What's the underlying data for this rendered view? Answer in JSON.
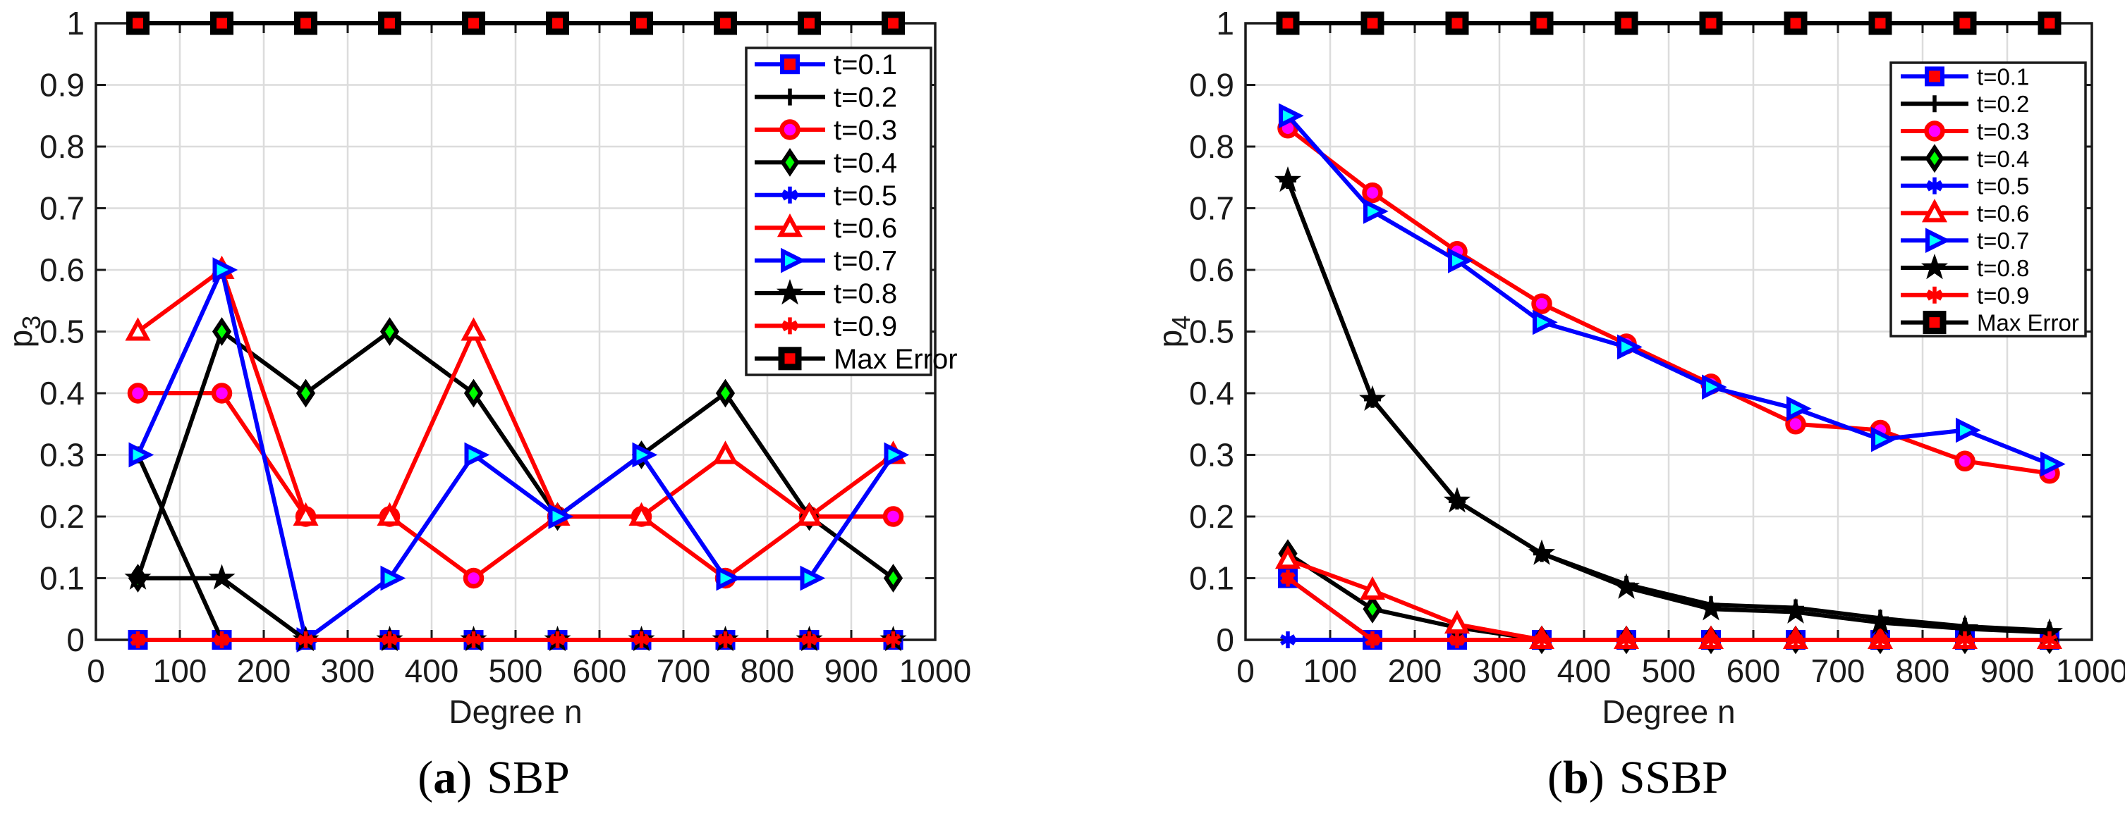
{
  "figure_title": "",
  "captions": {
    "a": {
      "open": "(",
      "letter": "a",
      "close": ")",
      "title": "SBP"
    },
    "b": {
      "open": "(",
      "letter": "b",
      "close": ")",
      "title": "SSBP"
    }
  },
  "colors": {
    "blue": "#0000ff",
    "red": "#ff0000",
    "black": "#000000",
    "green_face": "#00ff00",
    "magenta_face": "#ff00ff",
    "cyan_face": "#00ffff",
    "white_face": "#ffffff",
    "red_face": "#ff0000",
    "grid": "#dcdcdc",
    "axis": "#1a1a1a",
    "legend_bg": "#ffffff"
  },
  "chart_data": [
    {
      "type": "line",
      "panel": "a",
      "xlabel": "Degree n",
      "ylabel": {
        "text": "p",
        "sub": "3"
      },
      "xlim": [
        0,
        1000
      ],
      "ylim": [
        0,
        1
      ],
      "xticks": [
        0,
        100,
        200,
        300,
        400,
        500,
        600,
        700,
        800,
        900,
        1000
      ],
      "xtick_labels": [
        "0",
        "100",
        "200",
        "300",
        "400",
        "500",
        "600",
        "700",
        "800",
        "900",
        "1000"
      ],
      "yticks": [
        0,
        0.1,
        0.2,
        0.3,
        0.4,
        0.5,
        0.6,
        0.7,
        0.8,
        0.9,
        1
      ],
      "ytick_labels": [
        "0",
        "0.1",
        "0.2",
        "0.3",
        "0.4",
        "0.5",
        "0.6",
        "0.7",
        "0.8",
        "0.9",
        "1"
      ],
      "grid": true,
      "legend_position": "top-right-inside",
      "x": [
        50,
        150,
        250,
        350,
        450,
        550,
        650,
        750,
        850,
        950
      ],
      "series": [
        {
          "name": "t=0.1",
          "color": "#0000ff",
          "marker": "square",
          "face": "#ff0000",
          "values": [
            0,
            0,
            0,
            0,
            0,
            0,
            0,
            0,
            0,
            0
          ]
        },
        {
          "name": "t=0.2",
          "color": "#000000",
          "marker": "plus",
          "face": "none",
          "values": [
            0.3,
            0,
            0,
            0,
            0,
            0,
            0,
            0,
            0,
            0
          ]
        },
        {
          "name": "t=0.3",
          "color": "#ff0000",
          "marker": "circle",
          "face": "#ff00ff",
          "values": [
            0.4,
            0.4,
            0.2,
            0.2,
            0.1,
            0.2,
            0.2,
            0.1,
            0.2,
            0.2
          ]
        },
        {
          "name": "t=0.4",
          "color": "#000000",
          "marker": "diamond",
          "face": "#00ff00",
          "values": [
            0.1,
            0.5,
            0.4,
            0.5,
            0.4,
            0.2,
            0.3,
            0.4,
            0.2,
            0.1
          ]
        },
        {
          "name": "t=0.5",
          "color": "#0000ff",
          "marker": "asterisk",
          "face": "none",
          "values": [
            0,
            0,
            0,
            0,
            0,
            0,
            0,
            0,
            0,
            0
          ]
        },
        {
          "name": "t=0.6",
          "color": "#ff0000",
          "marker": "triangle-up",
          "face": "#ffffff",
          "values": [
            0.5,
            0.6,
            0.2,
            0.2,
            0.5,
            0.2,
            0.2,
            0.3,
            0.2,
            0.3
          ]
        },
        {
          "name": "t=0.7",
          "color": "#0000ff",
          "marker": "triangle-right",
          "face": "#00ffff",
          "values": [
            0.3,
            0.6,
            0,
            0.1,
            0.3,
            0.2,
            0.3,
            0.1,
            0.1,
            0.3
          ]
        },
        {
          "name": "t=0.8",
          "color": "#000000",
          "marker": "pentagram",
          "face": "#000000",
          "values": [
            0.1,
            0.1,
            0,
            0,
            0,
            0,
            0,
            0,
            0,
            0
          ]
        },
        {
          "name": "t=0.9",
          "color": "#ff0000",
          "marker": "asterisk",
          "face": "none",
          "values": [
            0,
            0,
            0,
            0,
            0,
            0,
            0,
            0,
            0,
            0
          ]
        },
        {
          "name": "Max Error",
          "color": "#000000",
          "marker": "square",
          "face": "#ff0000",
          "msize": 12,
          "medge": 9,
          "values": [
            1,
            1,
            1,
            1,
            1,
            1,
            1,
            1,
            1,
            1
          ]
        }
      ]
    },
    {
      "type": "line",
      "panel": "b",
      "xlabel": "Degree n",
      "ylabel": {
        "text": "p",
        "sub": "4"
      },
      "xlim": [
        0,
        1000
      ],
      "ylim": [
        0,
        1
      ],
      "xticks": [
        0,
        100,
        200,
        300,
        400,
        500,
        600,
        700,
        800,
        900,
        1000
      ],
      "xtick_labels": [
        "0",
        "100",
        "200",
        "300",
        "400",
        "500",
        "600",
        "700",
        "800",
        "900",
        "1000"
      ],
      "yticks": [
        0,
        0.1,
        0.2,
        0.3,
        0.4,
        0.5,
        0.6,
        0.7,
        0.8,
        0.9,
        1
      ],
      "ytick_labels": [
        "0",
        "0.1",
        "0.2",
        "0.3",
        "0.4",
        "0.5",
        "0.6",
        "0.7",
        "0.8",
        "0.9",
        "1"
      ],
      "grid": true,
      "legend_position": "top-right-inside",
      "x": [
        50,
        150,
        250,
        350,
        450,
        550,
        650,
        750,
        850,
        950
      ],
      "series": [
        {
          "name": "t=0.1",
          "color": "#0000ff",
          "marker": "square",
          "face": "#ff0000",
          "values": [
            0.1,
            0,
            0,
            0,
            0,
            0,
            0,
            0,
            0,
            0
          ]
        },
        {
          "name": "t=0.2",
          "color": "#000000",
          "marker": "plus",
          "face": "none",
          "values": [
            0.745,
            0.39,
            0.225,
            0.14,
            0.09,
            0.057,
            0.052,
            0.035,
            0.022,
            0.015
          ]
        },
        {
          "name": "t=0.3",
          "color": "#ff0000",
          "marker": "circle",
          "face": "#ff00ff",
          "values": [
            0.83,
            0.725,
            0.63,
            0.545,
            0.48,
            0.415,
            0.35,
            0.34,
            0.29,
            0.27
          ]
        },
        {
          "name": "t=0.4",
          "color": "#000000",
          "marker": "diamond",
          "face": "#00ff00",
          "values": [
            0.14,
            0.05,
            0.02,
            0,
            0,
            0,
            0,
            0,
            0,
            0
          ]
        },
        {
          "name": "t=0.5",
          "color": "#0000ff",
          "marker": "asterisk",
          "face": "none",
          "values": [
            0,
            0,
            0,
            0,
            0,
            0,
            0,
            0,
            0,
            0
          ]
        },
        {
          "name": "t=0.6",
          "color": "#ff0000",
          "marker": "triangle-up",
          "face": "#ffffff",
          "values": [
            0.13,
            0.08,
            0.025,
            0,
            0,
            0,
            0,
            0,
            0,
            0
          ]
        },
        {
          "name": "t=0.7",
          "color": "#0000ff",
          "marker": "triangle-right",
          "face": "#00ffff",
          "values": [
            0.85,
            0.695,
            0.615,
            0.515,
            0.475,
            0.41,
            0.375,
            0.325,
            0.34,
            0.285
          ]
        },
        {
          "name": "t=0.8",
          "color": "#000000",
          "marker": "pentagram",
          "face": "#000000",
          "values": [
            0.745,
            0.39,
            0.225,
            0.14,
            0.085,
            0.05,
            0.045,
            0.028,
            0.018,
            0.012
          ]
        },
        {
          "name": "t=0.9",
          "color": "#ff0000",
          "marker": "asterisk",
          "face": "none",
          "values": [
            0.1,
            0,
            0,
            0,
            0,
            0,
            0,
            0,
            0,
            0
          ]
        },
        {
          "name": "Max Error",
          "color": "#000000",
          "marker": "square",
          "face": "#ff0000",
          "msize": 12,
          "medge": 9,
          "values": [
            1,
            1,
            1,
            1,
            1,
            1,
            1,
            1,
            1,
            1
          ]
        }
      ]
    }
  ]
}
